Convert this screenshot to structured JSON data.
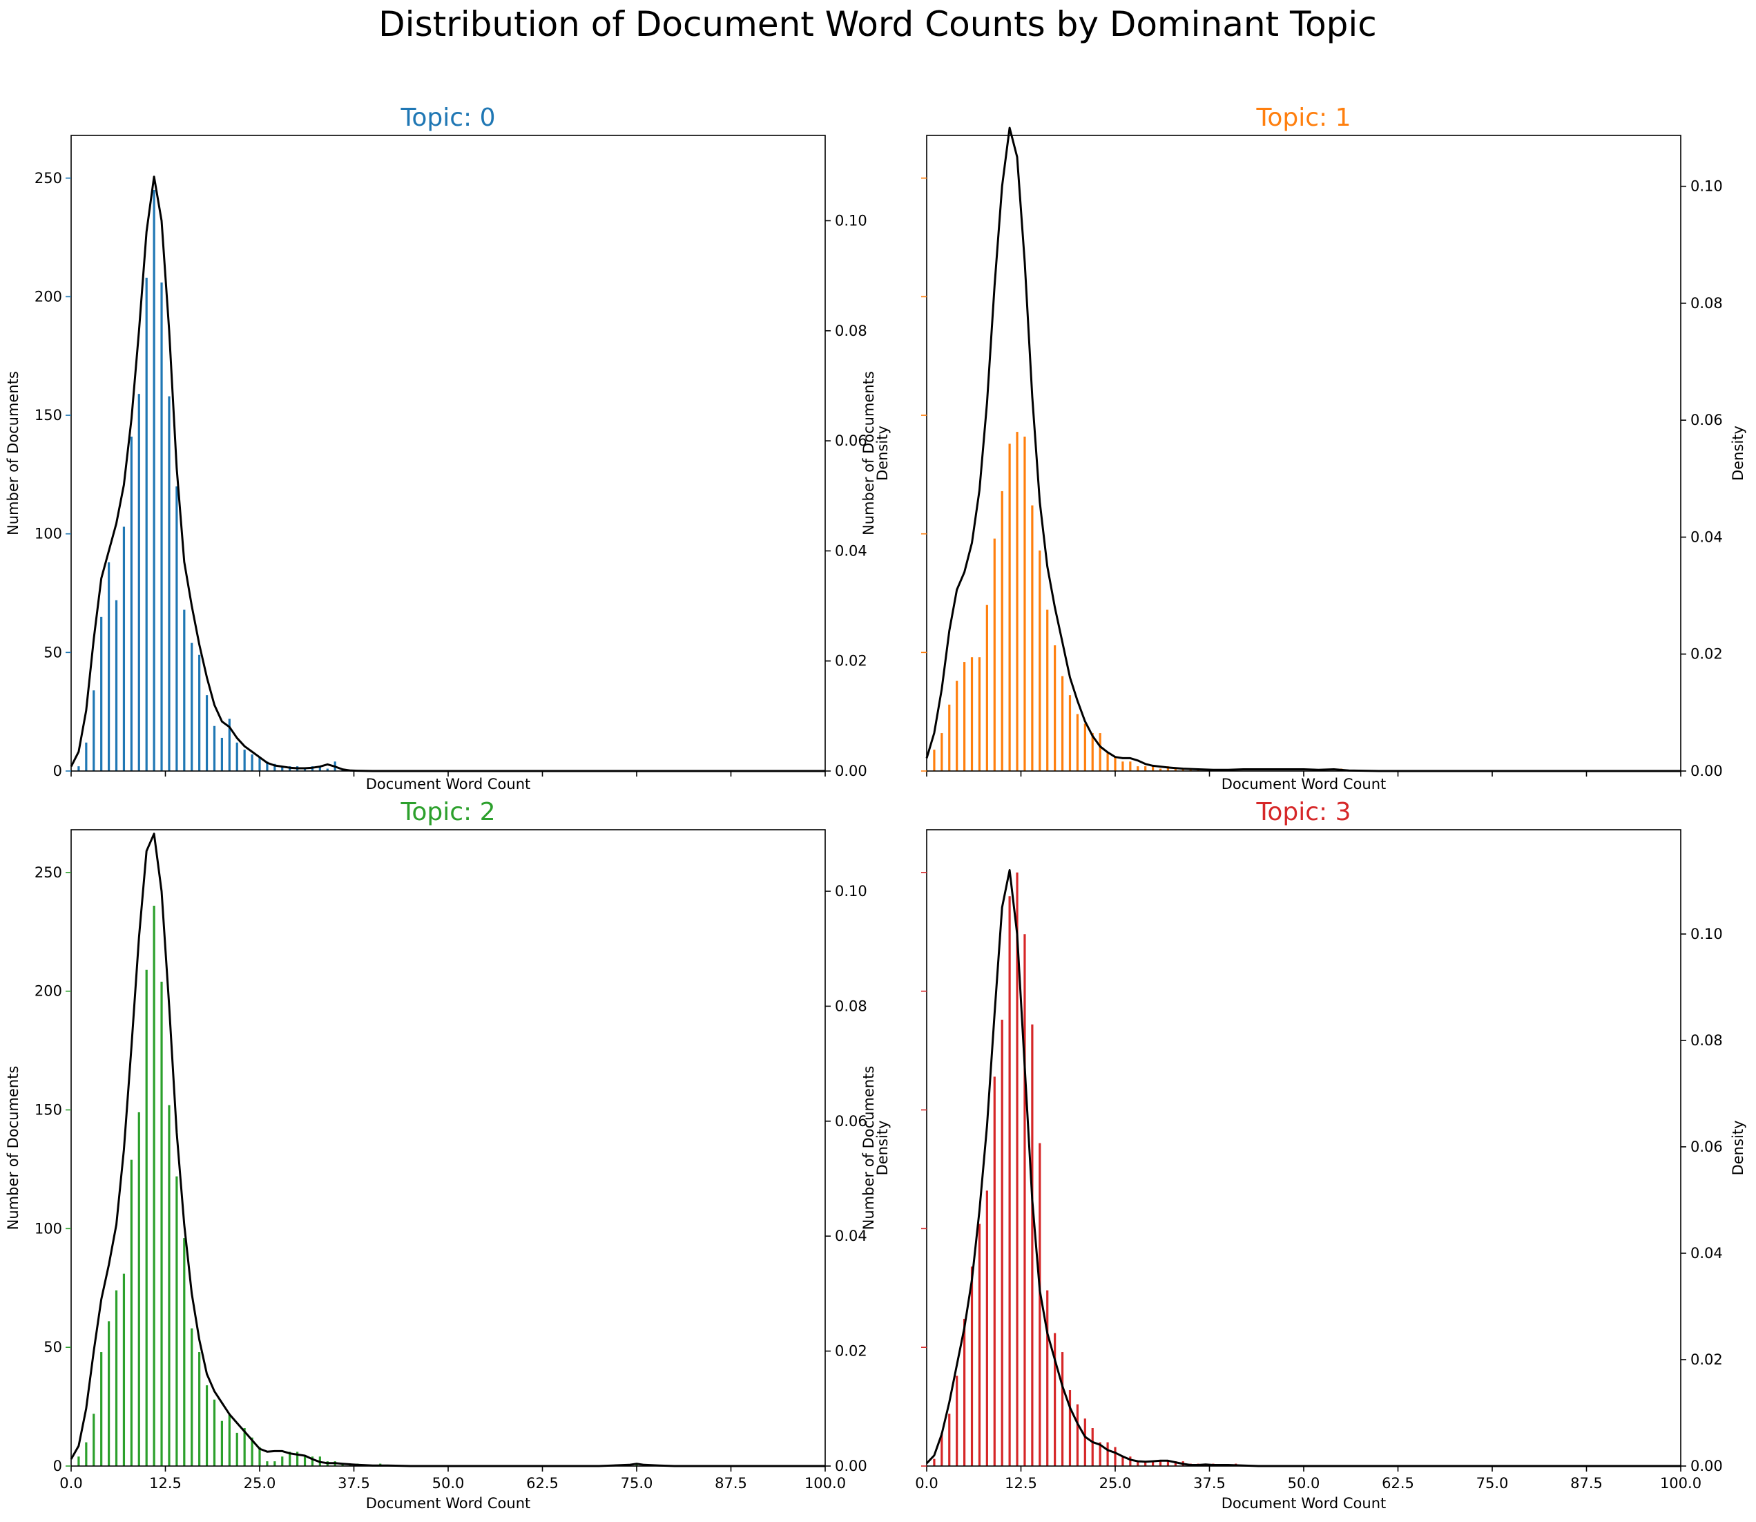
{
  "figure": {
    "suptitle": "Distribution of Document Word Counts by Dominant Topic"
  },
  "chart_data": [
    {
      "type": "bar",
      "title": "Topic: 0",
      "color": "#1f77b4",
      "xlabel": "Document Word Count",
      "ylabel": "Number of Documents",
      "y2label": "Density",
      "xlim": [
        0,
        100
      ],
      "ylim": [
        0,
        268
      ],
      "y2lim": [
        0,
        0.1155
      ],
      "xticks": [
        "0.0",
        "12.5",
        "25.0",
        "37.5",
        "50.0",
        "62.5",
        "75.0",
        "87.5",
        "100.0"
      ],
      "show_xticklabels": false,
      "yticks": [
        "0",
        "50",
        "100",
        "150",
        "200",
        "250"
      ],
      "y2ticks": [
        "0.00",
        "0.02",
        "0.04",
        "0.06",
        "0.08",
        "0.10"
      ],
      "x": [
        1,
        2,
        3,
        4,
        5,
        6,
        7,
        8,
        9,
        10,
        11,
        12,
        13,
        14,
        15,
        16,
        17,
        18,
        19,
        20,
        21,
        22,
        23,
        24,
        25,
        26,
        27,
        28,
        29,
        30,
        31,
        32,
        33,
        34,
        35,
        36,
        37,
        38,
        39,
        40
      ],
      "values": [
        2,
        12,
        34,
        65,
        88,
        72,
        103,
        141,
        159,
        208,
        245,
        206,
        158,
        120,
        68,
        54,
        49,
        32,
        19,
        14,
        22,
        12,
        9,
        7,
        6,
        4,
        3,
        2,
        2,
        2,
        1,
        2,
        2,
        1,
        4,
        1,
        0,
        0,
        0,
        0
      ],
      "density": {
        "x": [
          0,
          1,
          2,
          3,
          4,
          5,
          6,
          7,
          8,
          9,
          10,
          11,
          12,
          13,
          14,
          15,
          16,
          17,
          18,
          19,
          20,
          21,
          22,
          23,
          24,
          25,
          26,
          27,
          28,
          29,
          30,
          31,
          32,
          33,
          34,
          35,
          36,
          37,
          38,
          40,
          42,
          45,
          50,
          60,
          70,
          80,
          90,
          100
        ],
        "y": [
          0.0008,
          0.0035,
          0.011,
          0.024,
          0.035,
          0.04,
          0.045,
          0.052,
          0.064,
          0.08,
          0.098,
          0.108,
          0.1,
          0.08,
          0.055,
          0.038,
          0.03,
          0.023,
          0.017,
          0.012,
          0.009,
          0.008,
          0.006,
          0.0045,
          0.0035,
          0.0025,
          0.0015,
          0.001,
          0.0008,
          0.0006,
          0.0005,
          0.0005,
          0.0006,
          0.0008,
          0.0012,
          0.0008,
          0.0003,
          0.0001,
          5e-05,
          0,
          0,
          0,
          0,
          0,
          0,
          0,
          0,
          0
        ]
      }
    },
    {
      "type": "bar",
      "title": "Topic: 1",
      "color": "#ff7f0e",
      "xlabel": "Document Word Count",
      "ylabel": "Number of Documents",
      "y2label": "Density",
      "xlim": [
        0,
        100
      ],
      "ylim": [
        0,
        268
      ],
      "y2lim": [
        0,
        0.1087
      ],
      "xticks": [
        "0.0",
        "12.5",
        "25.0",
        "37.5",
        "50.0",
        "62.5",
        "75.0",
        "87.5",
        "100.0"
      ],
      "show_xticklabels": false,
      "yticks": [],
      "y2ticks": [
        "0.00",
        "0.02",
        "0.04",
        "0.06",
        "0.08",
        "0.10"
      ],
      "x": [
        1,
        2,
        3,
        4,
        5,
        6,
        7,
        8,
        9,
        10,
        11,
        12,
        13,
        14,
        15,
        16,
        17,
        18,
        19,
        20,
        21,
        22,
        23,
        24,
        25,
        26,
        27,
        28,
        29,
        30,
        31,
        32,
        33,
        34,
        35,
        36,
        37,
        38,
        39,
        40,
        41,
        42,
        43,
        44,
        45,
        46,
        47,
        48,
        49,
        50,
        51,
        52,
        53,
        54,
        55,
        56
      ],
      "values": [
        9,
        16,
        28,
        38,
        46,
        48,
        48,
        70,
        98,
        118,
        138,
        143,
        141,
        112,
        93,
        68,
        53,
        40,
        32,
        24,
        20,
        16,
        16,
        8,
        6,
        4,
        4,
        2,
        2,
        2,
        1,
        2,
        1,
        1,
        1,
        1,
        0,
        0,
        0,
        0,
        0,
        0,
        0,
        0,
        0,
        0,
        0,
        0,
        0,
        0,
        0,
        0,
        0,
        0,
        1,
        0
      ],
      "density": {
        "x": [
          0,
          1,
          2,
          3,
          4,
          5,
          6,
          7,
          8,
          9,
          10,
          11,
          12,
          13,
          14,
          15,
          16,
          17,
          18,
          19,
          20,
          21,
          22,
          23,
          24,
          25,
          26,
          27,
          28,
          29,
          30,
          32,
          34,
          36,
          38,
          40,
          42,
          45,
          48,
          50,
          52,
          54,
          56,
          60,
          70,
          80,
          90,
          100
        ],
        "y": [
          0.0022,
          0.0065,
          0.014,
          0.024,
          0.031,
          0.034,
          0.039,
          0.048,
          0.063,
          0.083,
          0.1,
          0.11,
          0.105,
          0.087,
          0.064,
          0.046,
          0.035,
          0.028,
          0.022,
          0.016,
          0.012,
          0.0085,
          0.006,
          0.0042,
          0.0032,
          0.0024,
          0.0022,
          0.0022,
          0.0018,
          0.0012,
          0.0009,
          0.0006,
          0.0004,
          0.0003,
          0.0002,
          0.0002,
          0.0003,
          0.0003,
          0.0003,
          0.0003,
          0.0002,
          0.0003,
          0.0001,
          0,
          0,
          0,
          0,
          0
        ]
      }
    },
    {
      "type": "bar",
      "title": "Topic: 2",
      "color": "#2ca02c",
      "xlabel": "Document Word Count",
      "ylabel": "Number of Documents",
      "y2label": "Density",
      "xlim": [
        0,
        100
      ],
      "ylim": [
        0,
        268
      ],
      "y2lim": [
        0,
        0.1107
      ],
      "xticks": [
        "0.0",
        "12.5",
        "25.0",
        "37.5",
        "50.0",
        "62.5",
        "75.0",
        "87.5",
        "100.0"
      ],
      "show_xticklabels": true,
      "yticks": [
        "0",
        "50",
        "100",
        "150",
        "200",
        "250"
      ],
      "y2ticks": [
        "0.00",
        "0.02",
        "0.04",
        "0.06",
        "0.08",
        "0.10"
      ],
      "x": [
        1,
        2,
        3,
        4,
        5,
        6,
        7,
        8,
        9,
        10,
        11,
        12,
        13,
        14,
        15,
        16,
        17,
        18,
        19,
        20,
        21,
        22,
        23,
        24,
        25,
        26,
        27,
        28,
        29,
        30,
        31,
        32,
        33,
        34,
        35,
        36,
        37,
        38,
        39,
        40,
        41,
        42,
        43,
        44,
        45,
        46,
        47,
        48,
        49,
        50,
        51,
        52,
        53,
        54,
        55,
        56,
        57,
        58,
        59,
        60,
        61,
        62,
        63,
        64,
        65,
        66,
        67,
        68,
        69,
        70,
        71,
        72,
        73,
        74,
        75,
        76,
        77,
        78,
        79
      ],
      "values": [
        4,
        10,
        22,
        48,
        61,
        74,
        81,
        129,
        149,
        209,
        236,
        204,
        152,
        122,
        96,
        58,
        48,
        34,
        28,
        19,
        22,
        14,
        16,
        12,
        8,
        2,
        2,
        4,
        6,
        6,
        4,
        4,
        4,
        2,
        2,
        1,
        1,
        1,
        0,
        0,
        1,
        0,
        0,
        0,
        0,
        0,
        0,
        0,
        0,
        0,
        0,
        0,
        0,
        0,
        0,
        0,
        0,
        0,
        0,
        0,
        0,
        0,
        0,
        0,
        0,
        0,
        0,
        0,
        0,
        0,
        0,
        0,
        0,
        0,
        1,
        0,
        0,
        0,
        0
      ],
      "density": {
        "x": [
          0,
          1,
          2,
          3,
          4,
          5,
          6,
          7,
          8,
          9,
          10,
          11,
          12,
          13,
          14,
          15,
          16,
          17,
          18,
          19,
          20,
          21,
          22,
          23,
          24,
          25,
          26,
          27,
          28,
          29,
          30,
          31,
          32,
          33,
          34,
          35,
          36,
          37,
          38,
          40,
          42,
          45,
          50,
          60,
          70,
          74,
          75,
          76,
          78,
          80,
          90,
          100
        ],
        "y": [
          0.0012,
          0.0035,
          0.01,
          0.02,
          0.029,
          0.035,
          0.042,
          0.055,
          0.073,
          0.092,
          0.107,
          0.11,
          0.1,
          0.08,
          0.058,
          0.042,
          0.03,
          0.022,
          0.016,
          0.013,
          0.011,
          0.009,
          0.0075,
          0.006,
          0.0045,
          0.003,
          0.0025,
          0.0026,
          0.0026,
          0.0022,
          0.002,
          0.0018,
          0.0012,
          0.0007,
          0.0005,
          0.0005,
          0.0004,
          0.0003,
          0.0002,
          0.0001,
          0.0001,
          0,
          0,
          0,
          0,
          0.0002,
          0.0004,
          0.0002,
          0.0001,
          0,
          0,
          0
        ]
      }
    },
    {
      "type": "bar",
      "title": "Topic: 3",
      "color": "#d62728",
      "xlabel": "Document Word Count",
      "ylabel": "Number of Documents",
      "y2label": "Density",
      "xlim": [
        0,
        100
      ],
      "ylim": [
        0,
        268
      ],
      "y2lim": [
        0,
        0.1196
      ],
      "xticks": [
        "0.0",
        "12.5",
        "25.0",
        "37.5",
        "50.0",
        "62.5",
        "75.0",
        "87.5",
        "100.0"
      ],
      "show_xticklabels": true,
      "yticks": [],
      "y2ticks": [
        "0.00",
        "0.02",
        "0.04",
        "0.06",
        "0.08",
        "0.10"
      ],
      "x": [
        1,
        2,
        3,
        4,
        5,
        6,
        7,
        8,
        9,
        10,
        11,
        12,
        13,
        14,
        15,
        16,
        17,
        18,
        19,
        20,
        21,
        22,
        23,
        24,
        25,
        26,
        27,
        28,
        29,
        30,
        31,
        32,
        33,
        34,
        35,
        36,
        37,
        38,
        39,
        40,
        41,
        42,
        43,
        44
      ],
      "values": [
        3,
        14,
        22,
        38,
        62,
        84,
        102,
        116,
        164,
        188,
        240,
        250,
        224,
        186,
        136,
        74,
        56,
        48,
        32,
        26,
        20,
        16,
        10,
        10,
        8,
        4,
        4,
        2,
        2,
        2,
        2,
        2,
        2,
        2,
        1,
        1,
        1,
        1,
        0,
        0,
        1,
        0,
        0,
        0
      ],
      "density": {
        "x": [
          0,
          1,
          2,
          3,
          4,
          5,
          6,
          7,
          8,
          9,
          10,
          11,
          12,
          13,
          14,
          15,
          16,
          17,
          18,
          19,
          20,
          21,
          22,
          23,
          24,
          25,
          26,
          27,
          28,
          29,
          30,
          31,
          32,
          33,
          34,
          35,
          36,
          37,
          38,
          40,
          42,
          44,
          48,
          60,
          70,
          80,
          90,
          100
        ],
        "y": [
          0.0005,
          0.002,
          0.006,
          0.012,
          0.019,
          0.026,
          0.035,
          0.048,
          0.064,
          0.085,
          0.105,
          0.112,
          0.1,
          0.075,
          0.05,
          0.033,
          0.025,
          0.02,
          0.015,
          0.011,
          0.008,
          0.0055,
          0.0045,
          0.004,
          0.003,
          0.0025,
          0.0018,
          0.0012,
          0.0009,
          0.0008,
          0.0009,
          0.001,
          0.001,
          0.0007,
          0.0004,
          0.0002,
          0.0002,
          0.0003,
          0.0002,
          0.0002,
          0.0001,
          0,
          0,
          0,
          0,
          0,
          0,
          0
        ]
      }
    }
  ]
}
